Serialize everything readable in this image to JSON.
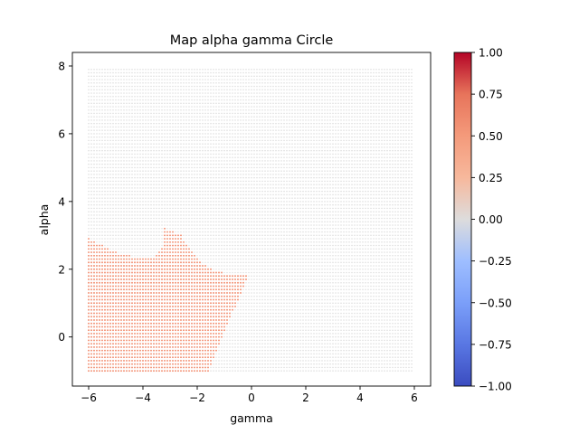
{
  "chart_data": {
    "type": "scatter",
    "title": "Map alpha gamma Circle",
    "xlabel": "gamma",
    "ylabel": "alpha",
    "xlim": [
      -6.6,
      6.6
    ],
    "ylim": [
      -1.45,
      8.4
    ],
    "xticks": [
      -6,
      -4,
      -2,
      0,
      2,
      4,
      6
    ],
    "xtick_labels": [
      "−6",
      "−4",
      "−2",
      "0",
      "2",
      "4",
      "6"
    ],
    "yticks": [
      0,
      2,
      4,
      6,
      8
    ],
    "ytick_labels": [
      "0",
      "2",
      "4",
      "6",
      "8"
    ],
    "grid": false,
    "grid_x_range": [
      -6.0,
      5.9
    ],
    "grid_y_range": [
      -1.0,
      7.9
    ],
    "grid_step": 0.1,
    "background_value": 0.0,
    "region_value": 0.55,
    "region_boundary": {
      "description_points_gamma_alpha": [
        [
          -6.0,
          2.9
        ],
        [
          -5.5,
          2.7
        ],
        [
          -5.0,
          2.5
        ],
        [
          -4.5,
          2.4
        ],
        [
          -4.0,
          2.3
        ],
        [
          -3.6,
          2.35
        ],
        [
          -3.3,
          2.6
        ],
        [
          -3.2,
          3.2
        ],
        [
          -2.9,
          3.1
        ],
        [
          -2.6,
          3.0
        ],
        [
          -2.3,
          2.6
        ],
        [
          -2.0,
          2.3
        ],
        [
          -1.5,
          2.0
        ],
        [
          -0.6,
          1.8
        ],
        [
          -0.1,
          1.85
        ],
        [
          -1.6,
          -1.0
        ]
      ],
      "lower_right_corner": [
        -1.5,
        -1.0
      ]
    },
    "colorbar": {
      "colormap": "coolwarm",
      "vmin": -1.0,
      "vmax": 1.0,
      "ticks": [
        1.0,
        0.75,
        0.5,
        0.25,
        0.0,
        -0.25,
        -0.5,
        -0.75,
        -1.0
      ],
      "tick_labels": [
        "1.00",
        "0.75",
        "0.50",
        "0.25",
        "0.00",
        "−0.25",
        "−0.50",
        "−0.75",
        "−1.00"
      ]
    }
  }
}
